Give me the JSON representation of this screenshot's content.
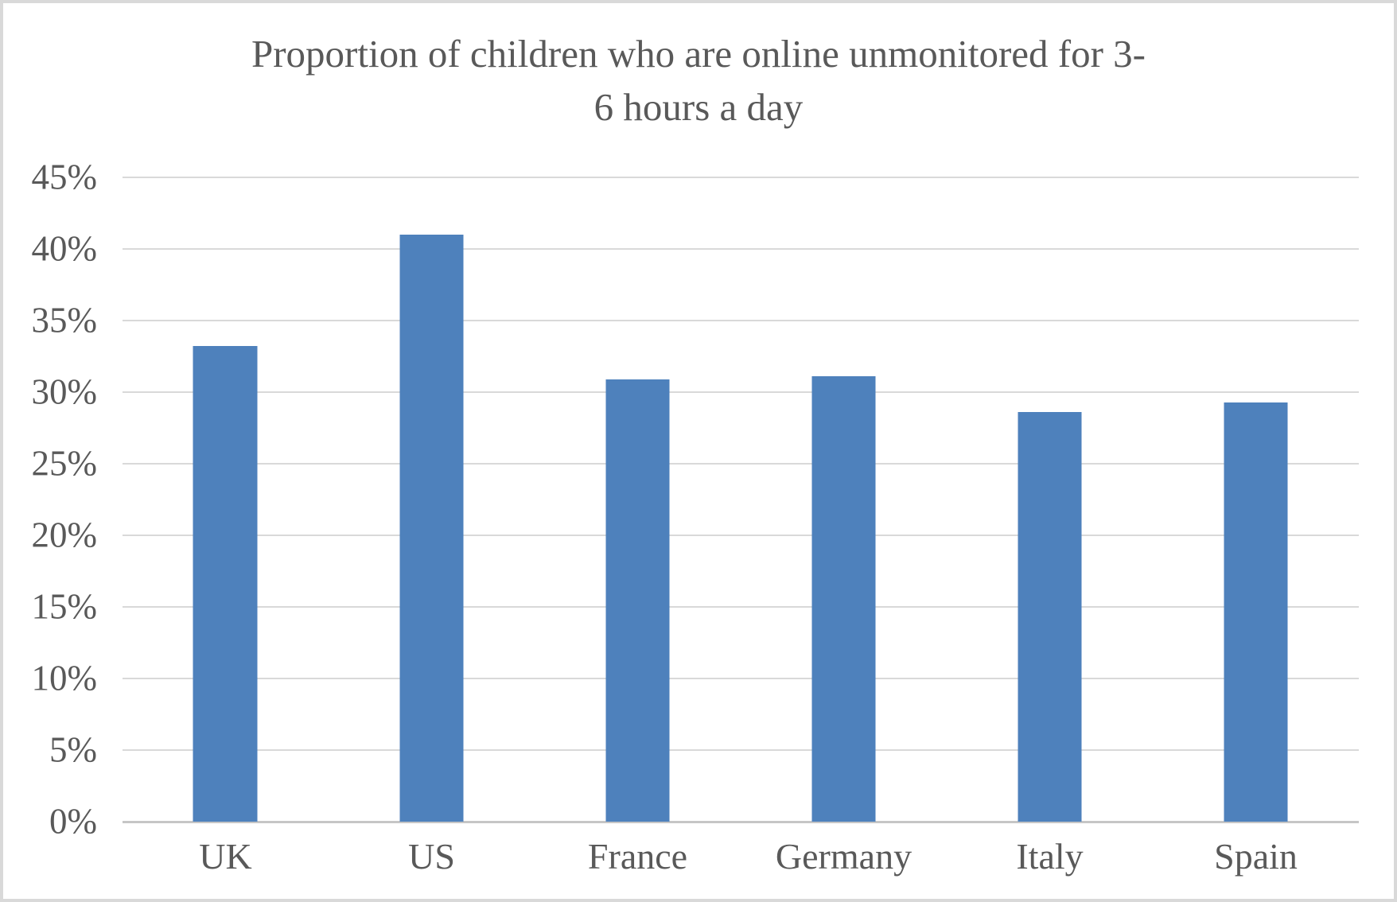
{
  "chart_data": {
    "type": "bar",
    "title": "Proportion of children who are online unmonitored for 3-6 hours a day",
    "title_lines": [
      "Proportion of children who are online unmonitored for 3-",
      "6 hours a day"
    ],
    "categories": [
      "UK",
      "US",
      "France",
      "Germany",
      "Italy",
      "Spain"
    ],
    "values": [
      33.2,
      41.0,
      30.9,
      31.1,
      28.6,
      29.3
    ],
    "unit": "%",
    "xlabel": "",
    "ylabel": "",
    "ylim": [
      0,
      45
    ],
    "ytick_step": 5,
    "ytick_labels": [
      "0%",
      "5%",
      "10%",
      "15%",
      "20%",
      "25%",
      "30%",
      "35%",
      "40%",
      "45%"
    ],
    "grid": true,
    "legend_position": "none",
    "colors": {
      "bar": "#4E81BC",
      "gridline": "#D9D9D9",
      "axis_line": "#C6C6C6",
      "text": "#595959",
      "frame_border": "#D9D9D9",
      "background": "#FFFFFF"
    }
  }
}
